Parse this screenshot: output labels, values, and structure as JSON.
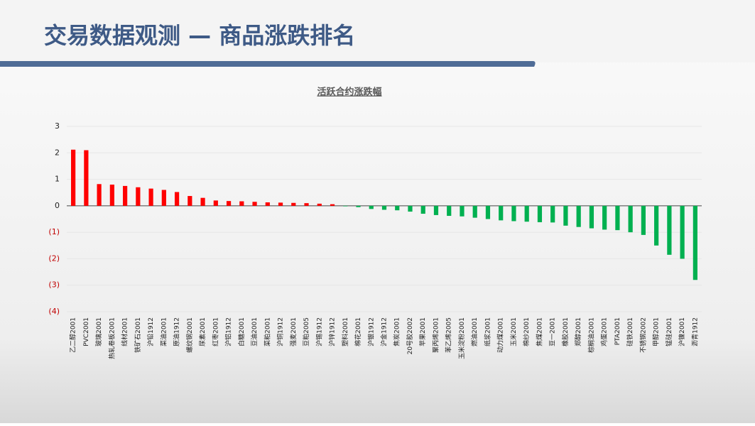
{
  "header": {
    "title": "交易数据观测 — 商品涨跌排名"
  },
  "chart_data": {
    "type": "bar",
    "title": "活跃合约涨跌幅",
    "categories": [
      "乙二醇2001",
      "PVC2001",
      "玻璃2001",
      "热轧卷板2001",
      "线材2001",
      "铁矿石2001",
      "沪铅1912",
      "菜油2001",
      "原油1912",
      "螺纹钢2001",
      "尿素2001",
      "红枣2001",
      "沪铝1912",
      "白糖2001",
      "豆油2001",
      "菜粕2001",
      "沪铜1912",
      "强麦2001",
      "豆粕2005",
      "沪锡1912",
      "沪锌1912",
      "塑料2001",
      "棉花2001",
      "沪银1912",
      "沪金1912",
      "焦炭2001",
      "20号胶2002",
      "苹果2001",
      "聚丙烯2001",
      "苯乙烯2005",
      "玉米淀粉2001",
      "燃油2001",
      "纸浆2001",
      "动力煤2001",
      "玉米2001",
      "棉纱2001",
      "焦煤2001",
      "豆一2001",
      "橡胶2001",
      "郑醇2001",
      "棕榈油2001",
      "鸡蛋2001",
      "PTA2001",
      "硅铁2001",
      "不锈钢2002",
      "甲醇2001",
      "锰硅2001",
      "沪镍2001",
      "沥青1912"
    ],
    "values": [
      2.12,
      2.1,
      0.82,
      0.8,
      0.75,
      0.7,
      0.65,
      0.6,
      0.52,
      0.37,
      0.3,
      0.2,
      0.18,
      0.17,
      0.15,
      0.13,
      0.12,
      0.11,
      0.1,
      0.08,
      0.06,
      -0.02,
      -0.05,
      -0.12,
      -0.15,
      -0.17,
      -0.22,
      -0.3,
      -0.35,
      -0.38,
      -0.4,
      -0.45,
      -0.5,
      -0.55,
      -0.58,
      -0.6,
      -0.62,
      -0.63,
      -0.75,
      -0.8,
      -0.85,
      -0.9,
      -0.92,
      -1.0,
      -1.1,
      -1.5,
      -1.85,
      -2.0,
      -2.8
    ],
    "positive_color": "#ff0000",
    "negative_color": "#00b050",
    "ylim": [
      -4,
      3
    ],
    "yticks": [
      3,
      2,
      1,
      0,
      {
        "value": -1,
        "label": "(1)"
      },
      {
        "value": -2,
        "label": "(2)"
      },
      {
        "value": -3,
        "label": "(3)"
      },
      {
        "value": -4,
        "label": "(4)"
      }
    ],
    "grid": true
  }
}
